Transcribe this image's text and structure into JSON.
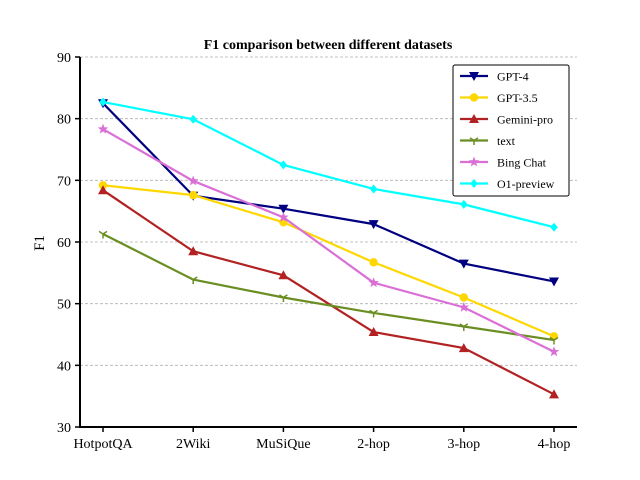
{
  "chart_data": {
    "type": "line",
    "title": "F1 comparison between different datasets",
    "xlabel": "",
    "ylabel": "F1",
    "categories": [
      "HotpotQA",
      "2Wiki",
      "MuSiQue",
      "2-hop",
      "3-hop",
      "4-hop"
    ],
    "ylim": [
      30,
      90
    ],
    "yticks": [
      30,
      40,
      50,
      60,
      70,
      80,
      90
    ],
    "grid": "horizontal-dashed",
    "legend_position": "top-right",
    "series": [
      {
        "name": "GPT-4",
        "color": "#000080",
        "marker": "triangle-down",
        "values": [
          82.5,
          67.5,
          65.4,
          62.9,
          56.5,
          53.6
        ]
      },
      {
        "name": "GPT-3.5",
        "color": "#FFD700",
        "marker": "circle",
        "values": [
          69.2,
          67.6,
          63.2,
          56.7,
          51.0,
          44.7
        ]
      },
      {
        "name": "Gemini-pro",
        "color": "#B22222",
        "marker": "triangle-up",
        "values": [
          68.4,
          58.5,
          54.6,
          45.4,
          42.8,
          35.3
        ]
      },
      {
        "name": "text",
        "color": "#6B8E23",
        "marker": "tri",
        "values": [
          61.3,
          53.9,
          51.0,
          48.5,
          46.3,
          44.1
        ]
      },
      {
        "name": "Bing Chat",
        "color": "#DA70D6",
        "marker": "star",
        "values": [
          78.3,
          69.9,
          64.0,
          53.4,
          49.4,
          42.2
        ]
      },
      {
        "name": "O1-preview",
        "color": "#00FFFF",
        "marker": "diamond",
        "values": [
          82.7,
          79.9,
          72.5,
          68.6,
          66.1,
          62.4
        ]
      }
    ]
  }
}
